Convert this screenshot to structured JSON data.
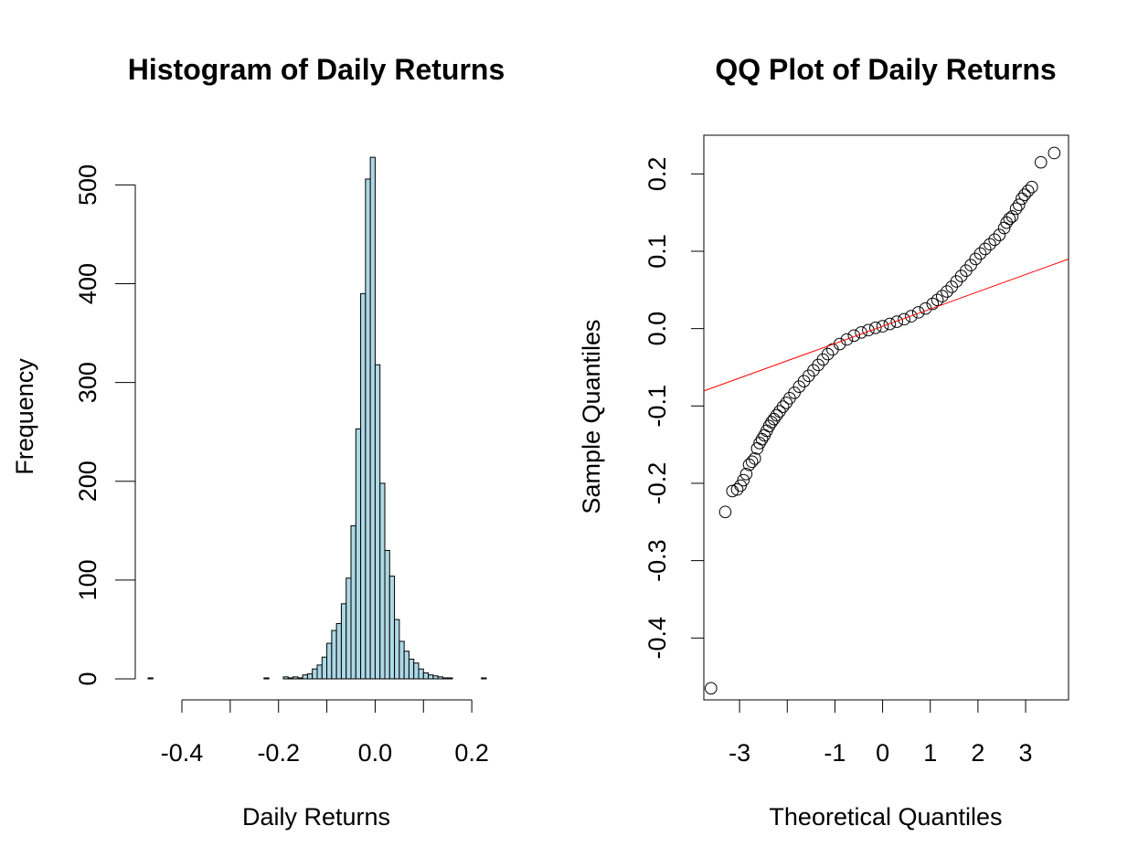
{
  "chart_data": [
    {
      "type": "histogram",
      "title": "Histogram of Daily Returns",
      "xlabel": "Daily Returns",
      "ylabel": "Frequency",
      "xlim": [
        -0.47,
        0.23
      ],
      "ylim": [
        0,
        530
      ],
      "x_ticks": [
        -0.4,
        -0.3,
        -0.2,
        -0.1,
        0.0,
        0.1,
        0.2
      ],
      "x_tick_labels": [
        "-0.4",
        "",
        "-0.2",
        "",
        "0.0",
        "",
        "0.2"
      ],
      "y_ticks": [
        0,
        100,
        200,
        300,
        400,
        500
      ],
      "y_tick_labels": [
        "0",
        "100",
        "200",
        "300",
        "400",
        "500"
      ],
      "bin_width": 0.01,
      "bin_start": -0.47,
      "counts": [
        1,
        0,
        0,
        0,
        0,
        0,
        0,
        0,
        0,
        0,
        0,
        0,
        0,
        0,
        0,
        0,
        0,
        0,
        0,
        0,
        0,
        0,
        0,
        0,
        1,
        0,
        0,
        0,
        2,
        1,
        2,
        1,
        4,
        5,
        10,
        14,
        22,
        36,
        49,
        56,
        76,
        102,
        155,
        253,
        390,
        506,
        528,
        318,
        198,
        130,
        104,
        60,
        38,
        28,
        20,
        16,
        10,
        6,
        4,
        3,
        2,
        1,
        1,
        0,
        0,
        0,
        0,
        0,
        0,
        1
      ],
      "fill_color": "#add8e6"
    },
    {
      "type": "scatter",
      "title": "QQ Plot of Daily Returns",
      "xlabel": "Theoretical Quantiles",
      "ylabel": "Sample Quantiles",
      "xlim": [
        -3.75,
        3.9
      ],
      "ylim": [
        -0.48,
        0.25
      ],
      "x_ticks": [
        -3,
        -2,
        -1,
        0,
        1,
        2,
        3
      ],
      "x_tick_labels": [
        "-3",
        "",
        "-1",
        "0",
        "1",
        "2",
        "3"
      ],
      "y_ticks": [
        -0.4,
        -0.3,
        -0.2,
        -0.1,
        0.0,
        0.1,
        0.2
      ],
      "y_tick_labels": [
        "-0.4",
        "-0.3",
        "-0.2",
        "-0.1",
        "0.0",
        "0.1",
        "0.2"
      ],
      "points": [
        [
          -3.6,
          -0.465
        ],
        [
          -3.3,
          -0.237
        ],
        [
          -3.15,
          -0.21
        ],
        [
          -3.05,
          -0.208
        ],
        [
          -2.98,
          -0.203
        ],
        [
          -2.92,
          -0.196
        ],
        [
          -2.86,
          -0.188
        ],
        [
          -2.8,
          -0.176
        ],
        [
          -2.74,
          -0.172
        ],
        [
          -2.68,
          -0.168
        ],
        [
          -2.63,
          -0.155
        ],
        [
          -2.58,
          -0.148
        ],
        [
          -2.53,
          -0.143
        ],
        [
          -2.48,
          -0.138
        ],
        [
          -2.43,
          -0.132
        ],
        [
          -2.38,
          -0.126
        ],
        [
          -2.33,
          -0.121
        ],
        [
          -2.28,
          -0.117
        ],
        [
          -2.22,
          -0.112
        ],
        [
          -2.16,
          -0.107
        ],
        [
          -2.09,
          -0.101
        ],
        [
          -2.02,
          -0.096
        ],
        [
          -1.95,
          -0.09
        ],
        [
          -1.85,
          -0.083
        ],
        [
          -1.75,
          -0.075
        ],
        [
          -1.65,
          -0.068
        ],
        [
          -1.55,
          -0.061
        ],
        [
          -1.45,
          -0.054
        ],
        [
          -1.35,
          -0.047
        ],
        [
          -1.25,
          -0.04
        ],
        [
          -1.15,
          -0.033
        ],
        [
          -1.05,
          -0.027
        ],
        [
          -0.9,
          -0.02
        ],
        [
          -0.75,
          -0.014
        ],
        [
          -0.6,
          -0.009
        ],
        [
          -0.45,
          -0.005
        ],
        [
          -0.3,
          -0.002
        ],
        [
          -0.15,
          0.001
        ],
        [
          0.0,
          0.003
        ],
        [
          0.15,
          0.006
        ],
        [
          0.3,
          0.009
        ],
        [
          0.45,
          0.012
        ],
        [
          0.6,
          0.016
        ],
        [
          0.75,
          0.021
        ],
        [
          0.9,
          0.026
        ],
        [
          1.05,
          0.032
        ],
        [
          1.15,
          0.037
        ],
        [
          1.25,
          0.042
        ],
        [
          1.35,
          0.048
        ],
        [
          1.45,
          0.054
        ],
        [
          1.55,
          0.061
        ],
        [
          1.65,
          0.068
        ],
        [
          1.75,
          0.075
        ],
        [
          1.85,
          0.082
        ],
        [
          1.95,
          0.09
        ],
        [
          2.05,
          0.097
        ],
        [
          2.15,
          0.103
        ],
        [
          2.25,
          0.109
        ],
        [
          2.35,
          0.115
        ],
        [
          2.45,
          0.121
        ],
        [
          2.55,
          0.13
        ],
        [
          2.6,
          0.137
        ],
        [
          2.66,
          0.142
        ],
        [
          2.72,
          0.145
        ],
        [
          2.8,
          0.155
        ],
        [
          2.86,
          0.16
        ],
        [
          2.92,
          0.168
        ],
        [
          2.98,
          0.173
        ],
        [
          3.05,
          0.178
        ],
        [
          3.13,
          0.183
        ],
        [
          3.32,
          0.215
        ],
        [
          3.6,
          0.227
        ]
      ],
      "reference_line": {
        "intercept": 0.003,
        "slope": 0.0223,
        "color": "#ff0000"
      }
    }
  ]
}
